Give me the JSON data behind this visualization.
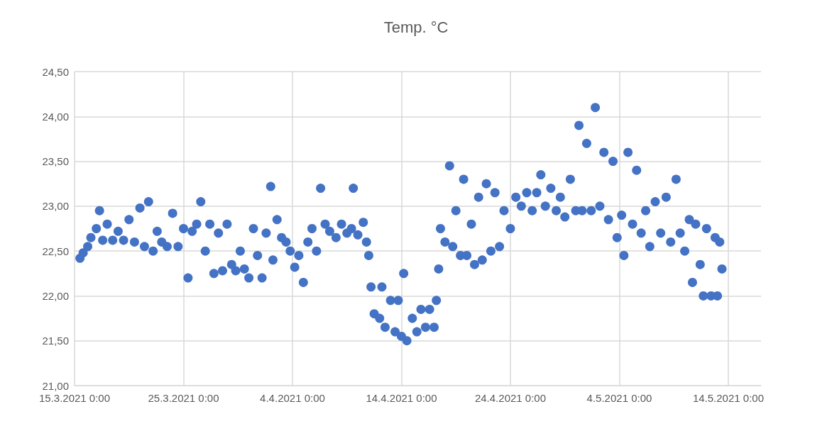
{
  "chart_data": {
    "type": "scatter",
    "title": "Temp. °C",
    "marker": "circle",
    "grid": true,
    "xlim": [
      "2021-03-15",
      "2021-05-17"
    ],
    "xticks": [
      {
        "value": "2021-03-15",
        "label": "15.3.2021 0:00"
      },
      {
        "value": "2021-03-25",
        "label": "25.3.2021 0:00"
      },
      {
        "value": "2021-04-04",
        "label": "4.4.2021 0:00"
      },
      {
        "value": "2021-04-14",
        "label": "14.4.2021 0:00"
      },
      {
        "value": "2021-04-24",
        "label": "24.4.2021 0:00"
      },
      {
        "value": "2021-05-04",
        "label": "4.5.2021 0:00"
      },
      {
        "value": "2021-05-14",
        "label": "14.5.2021 0:00"
      }
    ],
    "ylim": [
      21,
      24.5
    ],
    "yticks": [
      {
        "value": 21,
        "label": "21,00"
      },
      {
        "value": 21.5,
        "label": "21,50"
      },
      {
        "value": 22,
        "label": "22,00"
      },
      {
        "value": 22.5,
        "label": "22,50"
      },
      {
        "value": 23,
        "label": "23,00"
      },
      {
        "value": 23.5,
        "label": "23,50"
      },
      {
        "value": 24,
        "label": "24,00"
      },
      {
        "value": 24.5,
        "label": "24,50"
      }
    ],
    "series": [
      {
        "color": "#4472c4",
        "x": [
          "2021-03-15T12:00",
          "2021-03-15T19:00",
          "2021-03-16T05:00",
          "2021-03-16T12:00",
          "2021-03-17T00:00",
          "2021-03-17T07:00",
          "2021-03-17T14:00",
          "2021-03-18T00:00",
          "2021-03-18T12:00",
          "2021-03-19T00:00",
          "2021-03-19T12:00",
          "2021-03-20T00:00",
          "2021-03-20T12:00",
          "2021-03-21T00:00",
          "2021-03-21T10:00",
          "2021-03-21T19:00",
          "2021-03-22T05:00",
          "2021-03-22T14:00",
          "2021-03-23T00:00",
          "2021-03-23T12:00",
          "2021-03-24T00:00",
          "2021-03-24T12:00",
          "2021-03-25T00:00",
          "2021-03-25T10:00",
          "2021-03-25T19:00",
          "2021-03-26T05:00",
          "2021-03-26T14:00",
          "2021-03-27T00:00",
          "2021-03-27T10:00",
          "2021-03-27T19:00",
          "2021-03-28T05:00",
          "2021-03-28T14:00",
          "2021-03-29T00:00",
          "2021-03-29T10:00",
          "2021-03-29T19:00",
          "2021-03-30T05:00",
          "2021-03-30T14:00",
          "2021-03-31T00:00",
          "2021-03-31T10:00",
          "2021-03-31T19:00",
          "2021-04-01T05:00",
          "2021-04-01T14:00",
          "2021-04-02T00:00",
          "2021-04-02T05:00",
          "2021-04-02T14:00",
          "2021-04-03T00:00",
          "2021-04-03T10:00",
          "2021-04-03T19:00",
          "2021-04-04T05:00",
          "2021-04-04T14:00",
          "2021-04-05T00:00",
          "2021-04-05T10:00",
          "2021-04-05T19:00",
          "2021-04-06T05:00",
          "2021-04-06T14:00",
          "2021-04-07T00:00",
          "2021-04-07T10:00",
          "2021-04-08T00:00",
          "2021-04-08T12:00",
          "2021-04-09T00:00",
          "2021-04-09T10:00",
          "2021-04-09T14:00",
          "2021-04-10T00:00",
          "2021-04-10T12:00",
          "2021-04-10T19:00",
          "2021-04-11T00:00",
          "2021-04-11T05:00",
          "2021-04-11T12:00",
          "2021-04-12T00:00",
          "2021-04-12T05:00",
          "2021-04-12T12:00",
          "2021-04-13T00:00",
          "2021-04-13T10:00",
          "2021-04-13T17:00",
          "2021-04-14T00:00",
          "2021-04-14T05:00",
          "2021-04-14T12:00",
          "2021-04-15T00:00",
          "2021-04-15T10:00",
          "2021-04-15T19:00",
          "2021-04-16T05:00",
          "2021-04-16T14:00",
          "2021-04-17T00:00",
          "2021-04-17T05:00",
          "2021-04-17T10:00",
          "2021-04-17T14:00",
          "2021-04-18T00:00",
          "2021-04-18T10:00",
          "2021-04-18T17:00",
          "2021-04-19T00:00",
          "2021-04-19T10:00",
          "2021-04-19T17:00",
          "2021-04-20T00:00",
          "2021-04-20T10:00",
          "2021-04-20T17:00",
          "2021-04-21T02:00",
          "2021-04-21T10:00",
          "2021-04-21T19:00",
          "2021-04-22T05:00",
          "2021-04-22T14:00",
          "2021-04-23T00:00",
          "2021-04-23T10:00",
          "2021-04-24T00:00",
          "2021-04-24T12:00",
          "2021-04-25T00:00",
          "2021-04-25T12:00",
          "2021-04-26T00:00",
          "2021-04-26T10:00",
          "2021-04-26T19:00",
          "2021-04-27T05:00",
          "2021-04-27T17:00",
          "2021-04-28T05:00",
          "2021-04-28T14:00",
          "2021-04-29T00:00",
          "2021-04-29T12:00",
          "2021-04-30T00:00",
          "2021-04-30T07:00",
          "2021-04-30T14:00",
          "2021-05-01T00:00",
          "2021-05-01T10:00",
          "2021-05-01T19:00",
          "2021-05-02T05:00",
          "2021-05-02T14:00",
          "2021-05-03T00:00",
          "2021-05-03T10:00",
          "2021-05-03T19:00",
          "2021-05-04T05:00",
          "2021-05-04T10:00",
          "2021-05-04T19:00",
          "2021-05-05T05:00",
          "2021-05-05T14:00",
          "2021-05-06T00:00",
          "2021-05-06T10:00",
          "2021-05-06T19:00",
          "2021-05-07T07:00",
          "2021-05-07T19:00",
          "2021-05-08T07:00",
          "2021-05-08T17:00",
          "2021-05-09T05:00",
          "2021-05-09T14:00",
          "2021-05-10T00:00",
          "2021-05-10T10:00",
          "2021-05-10T17:00",
          "2021-05-11T00:00",
          "2021-05-11T10:00",
          "2021-05-11T17:00",
          "2021-05-12T00:00",
          "2021-05-12T10:00",
          "2021-05-12T19:00",
          "2021-05-13T00:00",
          "2021-05-13T05:00",
          "2021-05-13T10:00"
        ],
        "values": [
          22.42,
          22.48,
          22.55,
          22.65,
          22.75,
          22.95,
          22.62,
          22.8,
          22.62,
          22.72,
          22.62,
          22.85,
          22.6,
          22.98,
          22.55,
          23.05,
          22.5,
          22.72,
          22.6,
          22.55,
          22.92,
          22.55,
          22.75,
          22.2,
          22.72,
          22.8,
          23.05,
          22.5,
          22.8,
          22.25,
          22.7,
          22.28,
          22.8,
          22.35,
          22.28,
          22.5,
          22.3,
          22.2,
          22.75,
          22.45,
          22.2,
          22.7,
          23.22,
          22.4,
          22.85,
          22.65,
          22.6,
          22.5,
          22.32,
          22.45,
          22.15,
          22.6,
          22.75,
          22.5,
          23.2,
          22.8,
          22.72,
          22.65,
          22.8,
          22.7,
          22.75,
          23.2,
          22.68,
          22.82,
          22.6,
          22.45,
          22.1,
          21.8,
          21.75,
          22.1,
          21.65,
          21.95,
          21.6,
          21.95,
          21.55,
          22.25,
          21.5,
          21.75,
          21.6,
          21.85,
          21.65,
          21.85,
          21.65,
          21.95,
          22.3,
          22.75,
          22.6,
          23.45,
          22.55,
          22.95,
          22.45,
          23.3,
          22.45,
          22.8,
          22.35,
          23.1,
          22.4,
          23.25,
          22.5,
          23.15,
          22.55,
          22.95,
          22.75,
          23.1,
          23.0,
          23.15,
          22.95,
          23.15,
          23.35,
          23.0,
          23.2,
          22.95,
          23.1,
          22.88,
          23.3,
          22.95,
          23.9,
          22.95,
          23.7,
          22.95,
          24.1,
          23.0,
          23.6,
          22.85,
          23.5,
          22.65,
          22.9,
          22.45,
          23.6,
          22.8,
          23.4,
          22.7,
          22.95,
          22.55,
          23.05,
          22.7,
          23.1,
          22.6,
          23.3,
          22.7,
          22.5,
          22.85,
          22.15,
          22.8,
          22.35,
          22.0,
          22.75,
          22.0,
          22.65,
          22.0,
          22.6,
          22.3
        ]
      }
    ]
  }
}
